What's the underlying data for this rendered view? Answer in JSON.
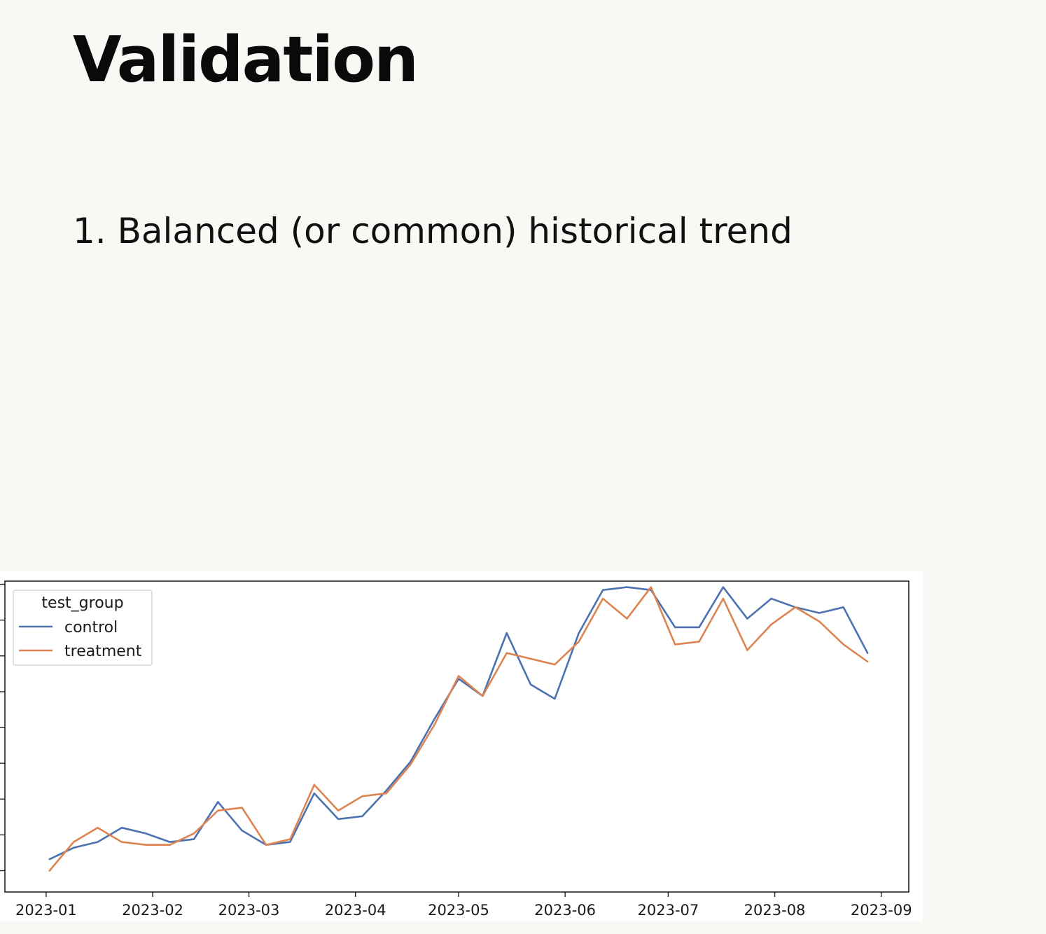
{
  "slide": {
    "title": "Validation",
    "bullet": "1. Balanced (or common) historical trend"
  },
  "chart_data": {
    "type": "line",
    "title": "",
    "xlabel": "",
    "ylabel": "",
    "x_tick_labels": [
      "2023-01",
      "2023-02",
      "2023-03",
      "2023-04",
      "2023-05",
      "2023-06",
      "2023-07",
      "2023-08",
      "2023-09"
    ],
    "x_tick_dates": [
      "2023-01-01",
      "2023-02-01",
      "2023-03-01",
      "2023-04-01",
      "2023-05-01",
      "2023-06-01",
      "2023-07-01",
      "2023-08-01",
      "2023-09-01"
    ],
    "xlim": [
      "2022-12-20",
      "2023-09-09"
    ],
    "ylim": [
      0,
      100
    ],
    "y_tick_labels_shown": false,
    "grid": false,
    "legend": {
      "title": "test_group",
      "placement": "upper-left"
    },
    "x": [
      "2023-01-02",
      "2023-01-09",
      "2023-01-16",
      "2023-01-23",
      "2023-01-30",
      "2023-02-06",
      "2023-02-13",
      "2023-02-20",
      "2023-02-27",
      "2023-03-06",
      "2023-03-13",
      "2023-03-20",
      "2023-03-27",
      "2023-04-03",
      "2023-04-10",
      "2023-04-17",
      "2023-04-24",
      "2023-05-01",
      "2023-05-08",
      "2023-05-15",
      "2023-05-22",
      "2023-05-29",
      "2023-06-05",
      "2023-06-12",
      "2023-06-19",
      "2023-06-26",
      "2023-07-03",
      "2023-07-10",
      "2023-07-17",
      "2023-07-24",
      "2023-07-31",
      "2023-08-07",
      "2023-08-14",
      "2023-08-21",
      "2023-08-28"
    ],
    "series": [
      {
        "name": "control",
        "color": "#4c72b0",
        "values": [
          9,
          13,
          15,
          20,
          18,
          15,
          16,
          29,
          19,
          14,
          15,
          32,
          23,
          24,
          33,
          43,
          58,
          72,
          66,
          88,
          70,
          65,
          88,
          103,
          104,
          103,
          90,
          90,
          104,
          93,
          100,
          97,
          95,
          97,
          81
        ]
      },
      {
        "name": "treatment",
        "color": "#dd8452",
        "values": [
          5,
          15,
          20,
          15,
          14,
          14,
          18,
          26,
          27,
          14,
          16,
          35,
          26,
          31,
          32,
          42,
          56,
          73,
          66,
          81,
          79,
          77,
          85,
          100,
          93,
          104,
          84,
          85,
          100,
          82,
          91,
          97,
          92,
          84,
          78
        ]
      }
    ]
  }
}
